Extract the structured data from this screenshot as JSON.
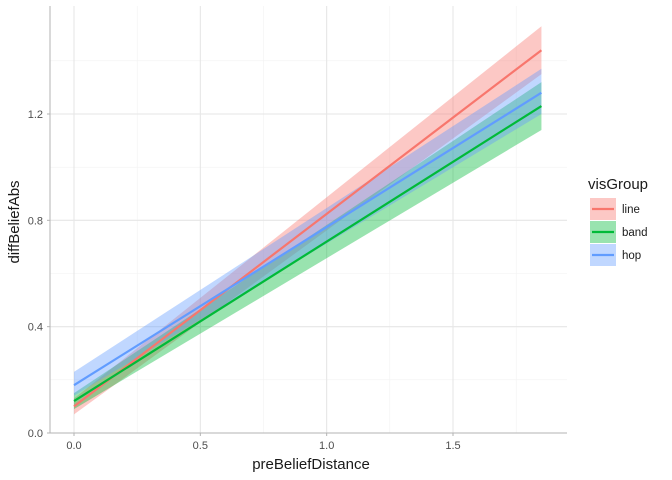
{
  "chart_data": {
    "type": "line",
    "xlabel": "preBeliefDistance",
    "ylabel": "diffBeliefAbs",
    "xlim": [
      -0.1,
      1.95
    ],
    "ylim": [
      0,
      1.6
    ],
    "x_ticks": [
      0,
      0.5,
      1,
      1.5
    ],
    "x_tick_labels": [
      "0.0",
      "0.5",
      "1.0",
      "1.5"
    ],
    "y_ticks": [
      0,
      0.4,
      0.8,
      1.2
    ],
    "y_tick_labels": [
      "0.0",
      "0.4",
      "0.8",
      "1.2"
    ],
    "grid": true,
    "legend": {
      "title": "visGroup",
      "position": "right"
    },
    "series": [
      {
        "name": "line",
        "color": "#F8766D",
        "ribbon_color": "#F8766D",
        "x": [
          0,
          1.85
        ],
        "y": [
          0.1,
          1.44
        ],
        "lower": [
          0.07,
          1.35
        ],
        "upper": [
          0.13,
          1.53
        ]
      },
      {
        "name": "band",
        "color": "#00BA38",
        "ribbon_color": "#00BA38",
        "x": [
          0,
          1.85
        ],
        "y": [
          0.12,
          1.23
        ],
        "lower": [
          0.09,
          1.14
        ],
        "upper": [
          0.15,
          1.32
        ]
      },
      {
        "name": "hop",
        "color": "#619CFF",
        "ribbon_color": "#619CFF",
        "x": [
          0,
          1.85
        ],
        "y": [
          0.18,
          1.28
        ],
        "lower": [
          0.14,
          1.2
        ],
        "upper": [
          0.23,
          1.37
        ]
      }
    ]
  }
}
